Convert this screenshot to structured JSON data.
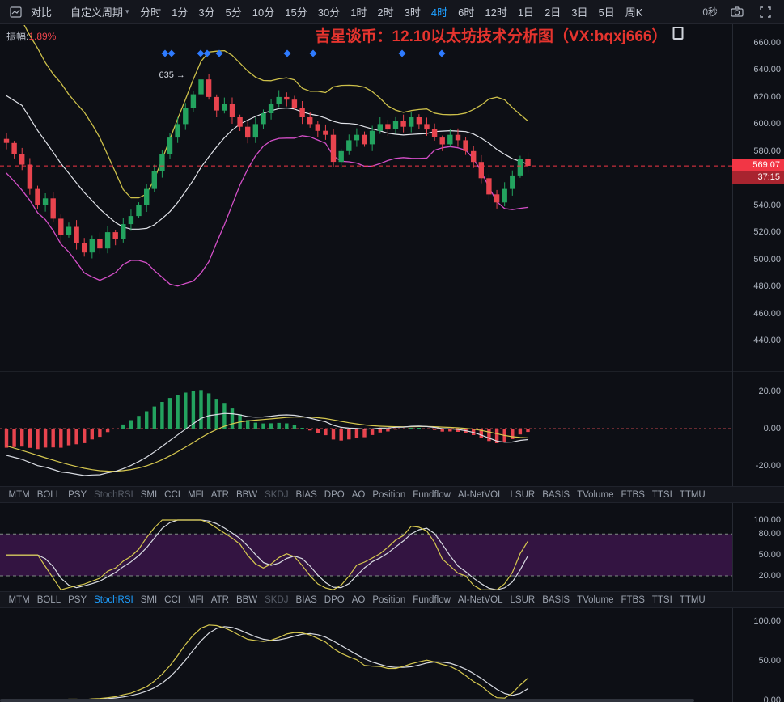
{
  "colors": {
    "accent_blue": "#1e9fff",
    "up_green": "#23a35f",
    "down_red": "#e8444e",
    "boll_upper_yellow": "#cdc04a",
    "boll_mid_white": "#e2e4ea",
    "boll_lower_magenta": "#d44fc8",
    "macd_dif_white": "#d8dbe2",
    "macd_dea_yellow": "#d6c84f",
    "band_purple": "#5a1a6e",
    "marker_blue": "#2e7bff",
    "badge_red": "#f23645",
    "countdown_red": "#a8242f",
    "title_red": "#e5342e"
  },
  "toolbar": {
    "compare_label": "对比",
    "custom_period_label": "自定义周期",
    "timeframes": [
      "分时",
      "1分",
      "3分",
      "5分",
      "10分",
      "15分",
      "30分",
      "1时",
      "2时",
      "3时",
      "4时",
      "6时",
      "12时",
      "1日",
      "2日",
      "3日",
      "5日",
      "周K"
    ],
    "active_timeframe": "4时",
    "bar_countdown": "0秒"
  },
  "overlay": {
    "amplitude_label": "振幅:",
    "amplitude_value": "1.89%",
    "watermark_title": "吉星谈币：12.10以太坊技术分析图（VX:bqxj666）",
    "price_badge": "569.07",
    "countdown_badge": "37:15"
  },
  "indicator_tabs": {
    "items": [
      "MTM",
      "BOLL",
      "PSY",
      "StochRSI",
      "SMI",
      "CCI",
      "MFI",
      "ATR",
      "BBW",
      "SKDJ",
      "BIAS",
      "DPO",
      "AO",
      "Position",
      "Fundflow",
      "AI-NetVOL",
      "LSUR",
      "BASIS",
      "TVolume",
      "FTBS",
      "TTSI",
      "TTMU"
    ],
    "row1": {
      "active": "",
      "dimmed": [
        "StochRSI",
        "SKDJ"
      ]
    },
    "row2": {
      "active": "StochRSI",
      "dimmed": [
        "SKDJ"
      ]
    }
  },
  "chart_data": {
    "type": "candlestick-multi-panel",
    "price_panel": {
      "type": "candlestick",
      "y_ticks": [
        660,
        640,
        620,
        600,
        580,
        540,
        520,
        500,
        480,
        460,
        440
      ],
      "last_price": 569.07,
      "closes": [
        586,
        578,
        570,
        552,
        540,
        545,
        530,
        518,
        524,
        512,
        505,
        515,
        508,
        520,
        515,
        526,
        532,
        540,
        552,
        565,
        578,
        590,
        600,
        612,
        622,
        633,
        620,
        610,
        615,
        605,
        598,
        590,
        600,
        608,
        615,
        620,
        618,
        612,
        605,
        600,
        595,
        592,
        572,
        580,
        588,
        592,
        585,
        595,
        600,
        596,
        602,
        598,
        605,
        600,
        596,
        590,
        585,
        592,
        588,
        580,
        572,
        560,
        548,
        542,
        552,
        562,
        574,
        569.07
      ],
      "peak": {
        "index": 25,
        "price": 635,
        "label": "635 →"
      },
      "diamond_marker_x": [
        204,
        212,
        248,
        256,
        271,
        355,
        387,
        497,
        546
      ]
    },
    "macd_panel": {
      "type": "macd-histogram",
      "y_ticks": [
        20,
        0,
        -20
      ]
    },
    "stochrsi_panel": {
      "type": "line-oscillator",
      "y_ticks": [
        100,
        80,
        50,
        20
      ],
      "shaded_band": [
        20,
        80
      ]
    },
    "oscillator_panel": {
      "type": "line-oscillator",
      "y_ticks": [
        100,
        50,
        0
      ]
    }
  }
}
